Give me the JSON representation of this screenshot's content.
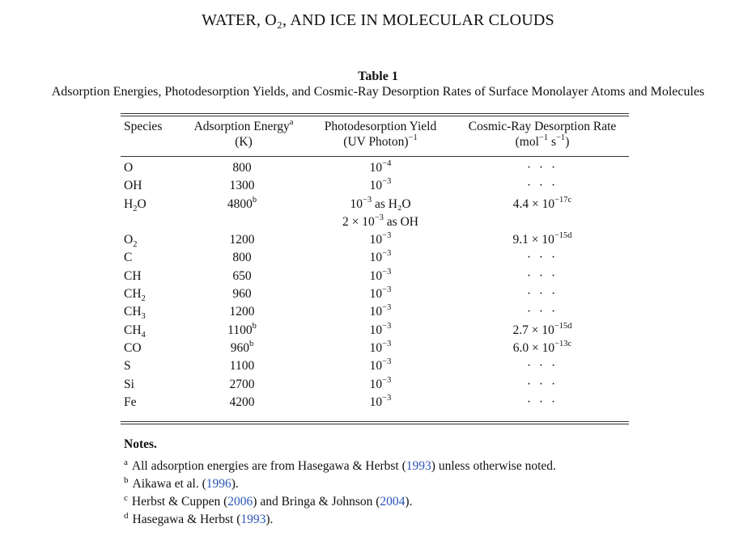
{
  "running_head": "WATER, O₂, AND ICE IN MOLECULAR CLOUDS",
  "table": {
    "title": "Table 1",
    "caption": "Adsorption Energies, Photodesorption Yields, and Cosmic-Ray Desorption Rates of Surface Monolayer Atoms and Molecules",
    "headers": {
      "species": "Species",
      "energy": "Adsorption Energy",
      "energy_mark": "a",
      "energy_unit": "(K)",
      "yield": "Photodesorption Yield",
      "yield_unit": "(UV Photon)",
      "yield_unit_exp": "−1",
      "rate": "Cosmic-Ray Desorption Rate",
      "rate_unit_a": "(mol",
      "rate_unit_exp1": "−1",
      "rate_unit_b": " s",
      "rate_unit_exp2": "−1",
      "rate_unit_c": ")"
    },
    "rows": [
      {
        "species": "O",
        "energy": "800",
        "energy_mark": "",
        "yield": "10",
        "yield_exp": "−4",
        "yield_suffix": "",
        "rate": "· · ·"
      },
      {
        "species": "OH",
        "energy": "1300",
        "energy_mark": "",
        "yield": "10",
        "yield_exp": "−3",
        "yield_suffix": "",
        "rate": "· · ·"
      },
      {
        "species": "H",
        "species_sub": "2",
        "species_tail": "O",
        "energy": "4800",
        "energy_mark": "b",
        "yield": "10",
        "yield_exp": "−3",
        "yield_suffix": " as H₂O",
        "rate_base": "4.4 × 10",
        "rate_exp": "−17c"
      },
      {
        "species": "",
        "energy": "",
        "energy_mark": "",
        "yield": "2 × 10",
        "yield_exp": "−3",
        "yield_suffix": " as OH",
        "rate": ""
      },
      {
        "species": "O",
        "species_sub": "2",
        "energy": "1200",
        "energy_mark": "",
        "yield": "10",
        "yield_exp": "−3",
        "yield_suffix": "",
        "rate_base": "9.1 × 10",
        "rate_exp": "−15d"
      },
      {
        "species": "C",
        "energy": "800",
        "energy_mark": "",
        "yield": "10",
        "yield_exp": "−3",
        "yield_suffix": "",
        "rate": "· · ·"
      },
      {
        "species": "CH",
        "energy": "650",
        "energy_mark": "",
        "yield": "10",
        "yield_exp": "−3",
        "yield_suffix": "",
        "rate": "· · ·"
      },
      {
        "species": "CH",
        "species_sub": "2",
        "energy": "960",
        "energy_mark": "",
        "yield": "10",
        "yield_exp": "−3",
        "yield_suffix": "",
        "rate": "· · ·"
      },
      {
        "species": "CH",
        "species_sub": "3",
        "energy": "1200",
        "energy_mark": "",
        "yield": "10",
        "yield_exp": "−3",
        "yield_suffix": "",
        "rate": "· · ·"
      },
      {
        "species": "CH",
        "species_sub": "4",
        "energy": "1100",
        "energy_mark": "b",
        "yield": "10",
        "yield_exp": "−3",
        "yield_suffix": "",
        "rate_base": "2.7 × 10",
        "rate_exp": "−15d"
      },
      {
        "species": "CO",
        "energy": "960",
        "energy_mark": "b",
        "yield": "10",
        "yield_exp": "−3",
        "yield_suffix": "",
        "rate_base": "6.0 × 10",
        "rate_exp": "−13c"
      },
      {
        "species": "S",
        "energy": "1100",
        "energy_mark": "",
        "yield": "10",
        "yield_exp": "−3",
        "yield_suffix": "",
        "rate": "· · ·"
      },
      {
        "species": "Si",
        "energy": "2700",
        "energy_mark": "",
        "yield": "10",
        "yield_exp": "−3",
        "yield_suffix": "",
        "rate": "· · ·"
      },
      {
        "species": "Fe",
        "energy": "4200",
        "energy_mark": "",
        "yield": "10",
        "yield_exp": "−3",
        "yield_suffix": "",
        "rate": "· · ·"
      }
    ]
  },
  "notes": {
    "heading": "Notes.",
    "items": [
      {
        "mark": "a",
        "text": "All adsorption energies are from Hasegawa & Herbst (",
        "ref": "1993",
        "tail": ") unless otherwise noted."
      },
      {
        "mark": "b",
        "text": "Aikawa et al. (",
        "ref": "1996",
        "tail": ")."
      },
      {
        "mark": "c",
        "text": "Herbst & Cuppen (",
        "ref": "2006",
        "mid": ") and Bringa & Johnson (",
        "ref2": "2004",
        "tail": ")."
      },
      {
        "mark": "d",
        "text": "Hasegawa & Herbst (",
        "ref": "1993",
        "tail": ")."
      }
    ]
  },
  "colors": {
    "link": "#2a55b5",
    "text": "#111111"
  }
}
